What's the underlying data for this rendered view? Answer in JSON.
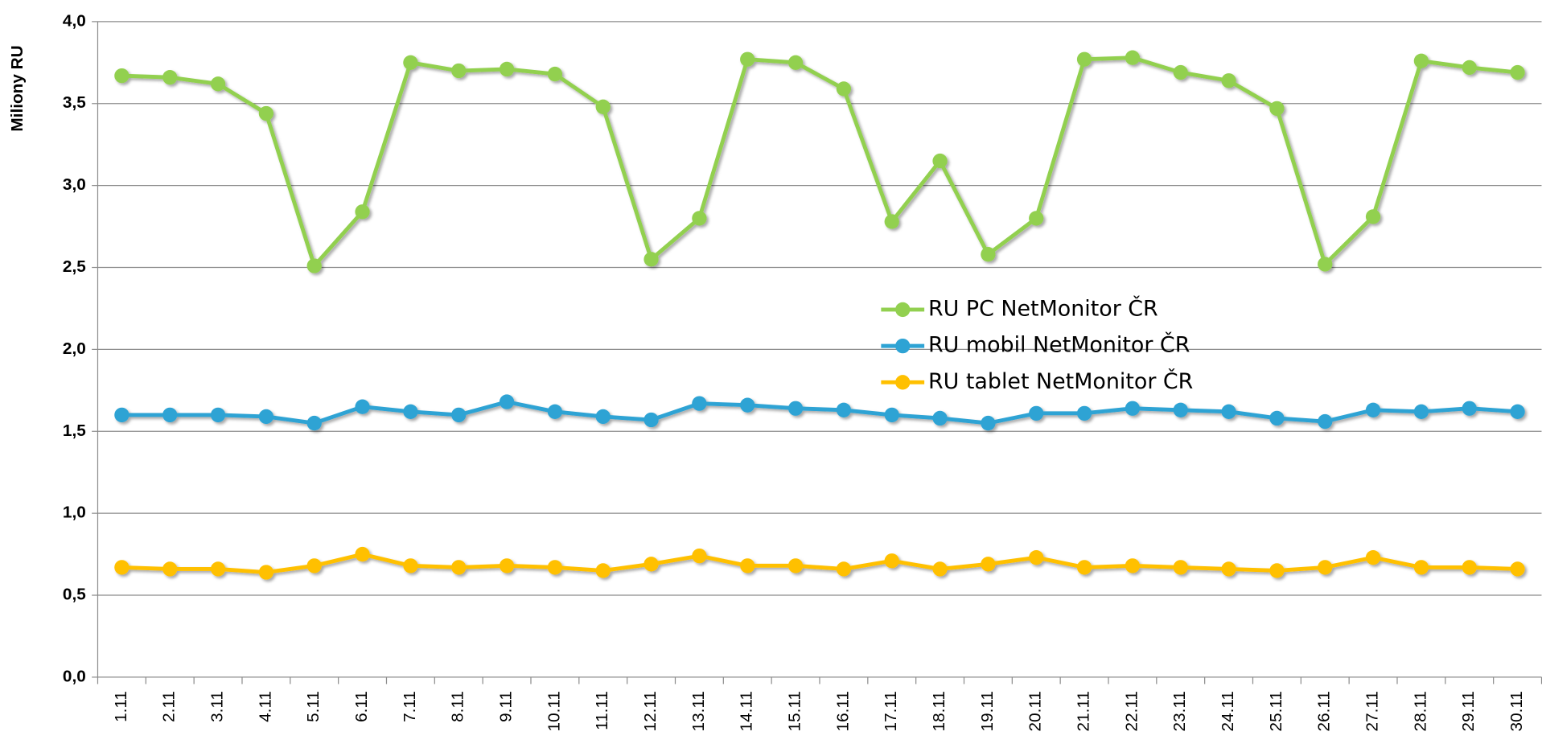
{
  "chart_data": {
    "type": "line",
    "y_label": "Miliony RU",
    "categories": [
      "1.11",
      "2.11",
      "3.11",
      "4.11",
      "5.11",
      "6.11",
      "7.11",
      "8.11",
      "9.11",
      "10.11",
      "11.11",
      "12.11",
      "13.11",
      "14.11",
      "15.11",
      "16.11",
      "17.11",
      "18.11",
      "19.11",
      "20.11",
      "21.11",
      "22.11",
      "23.11",
      "24.11",
      "25.11",
      "26.11",
      "27.11",
      "28.11",
      "29.11",
      "30.11"
    ],
    "series": [
      {
        "name": "RU PC NetMonitor ČR",
        "color": "#92d050",
        "values": [
          3.67,
          3.66,
          3.62,
          3.44,
          2.51,
          2.84,
          3.75,
          3.7,
          3.71,
          3.68,
          3.48,
          2.55,
          2.8,
          3.77,
          3.75,
          3.59,
          2.78,
          3.15,
          2.58,
          2.8,
          3.77,
          3.78,
          3.69,
          3.64,
          3.47,
          2.52,
          2.81,
          3.76,
          3.72,
          3.69
        ]
      },
      {
        "name": "RU mobil NetMonitor ČR",
        "color": "#2ea3d4",
        "values": [
          1.6,
          1.6,
          1.6,
          1.59,
          1.55,
          1.65,
          1.62,
          1.6,
          1.68,
          1.62,
          1.59,
          1.57,
          1.67,
          1.66,
          1.64,
          1.63,
          1.6,
          1.58,
          1.55,
          1.61,
          1.61,
          1.64,
          1.63,
          1.62,
          1.58,
          1.56,
          1.63,
          1.62,
          1.64,
          1.62
        ]
      },
      {
        "name": "RU tablet NetMonitor ČR",
        "color": "#ffc000",
        "values": [
          0.67,
          0.66,
          0.66,
          0.64,
          0.68,
          0.75,
          0.68,
          0.67,
          0.68,
          0.67,
          0.65,
          0.69,
          0.74,
          0.68,
          0.68,
          0.66,
          0.71,
          0.66,
          0.69,
          0.73,
          0.67,
          0.68,
          0.67,
          0.66,
          0.65,
          0.67,
          0.73,
          0.67,
          0.67,
          0.66
        ]
      }
    ],
    "ylim": [
      0,
      4
    ],
    "yticks": [
      {
        "value": 0,
        "label": "0,0"
      },
      {
        "value": 0.5,
        "label": "0,5"
      },
      {
        "value": 1,
        "label": "1,0"
      },
      {
        "value": 1.5,
        "label": "1,5"
      },
      {
        "value": 2,
        "label": "2,0"
      },
      {
        "value": 2.5,
        "label": "2,5"
      },
      {
        "value": 3,
        "label": "3,0"
      },
      {
        "value": 3.5,
        "label": "3,5"
      },
      {
        "value": 4,
        "label": "4,0"
      }
    ],
    "grid": true,
    "legend": "right"
  }
}
